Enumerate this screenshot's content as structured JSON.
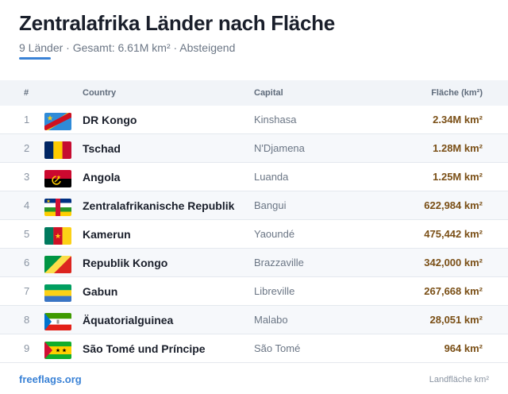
{
  "header": {
    "title": "Zentralafrika Länder nach Fläche",
    "subtitle": "9 Länder · Gesamt: 6.61M km² · Absteigend",
    "accent_color": "#3a82d6"
  },
  "table": {
    "columns": {
      "rank": "#",
      "country": "Country",
      "capital": "Capital",
      "area": "Fläche (km²)"
    },
    "rows": [
      {
        "rank": "1",
        "flag": "flag-dr-congo-icon",
        "country": "DR Kongo",
        "capital": "Kinshasa",
        "area": "2.34M km²"
      },
      {
        "rank": "2",
        "flag": "flag-chad-icon",
        "country": "Tschad",
        "capital": "N'Djamena",
        "area": "1.28M km²"
      },
      {
        "rank": "3",
        "flag": "flag-angola-icon",
        "country": "Angola",
        "capital": "Luanda",
        "area": "1.25M km²"
      },
      {
        "rank": "4",
        "flag": "flag-central-african-republic-icon",
        "country": "Zentralafrikanische Republik",
        "capital": "Bangui",
        "area": "622,984 km²"
      },
      {
        "rank": "5",
        "flag": "flag-cameroon-icon",
        "country": "Kamerun",
        "capital": "Yaoundé",
        "area": "475,442 km²"
      },
      {
        "rank": "6",
        "flag": "flag-republic-congo-icon",
        "country": "Republik Kongo",
        "capital": "Brazzaville",
        "area": "342,000 km²"
      },
      {
        "rank": "7",
        "flag": "flag-gabon-icon",
        "country": "Gabun",
        "capital": "Libreville",
        "area": "267,668 km²"
      },
      {
        "rank": "8",
        "flag": "flag-equatorial-guinea-icon",
        "country": "Äquatorialguinea",
        "capital": "Malabo",
        "area": "28,051 km²"
      },
      {
        "rank": "9",
        "flag": "flag-sao-tome-icon",
        "country": "São Tomé und Príncipe",
        "capital": "São Tomé",
        "area": "964 km²"
      }
    ]
  },
  "footer": {
    "link": "freeflags.org",
    "note": "Landfläche km²"
  }
}
